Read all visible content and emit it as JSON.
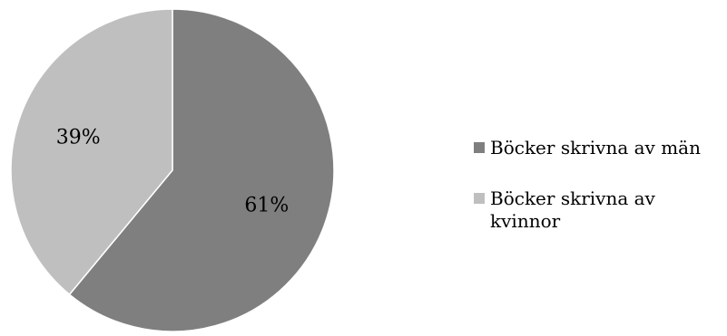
{
  "chart_data": {
    "type": "pie",
    "title": "",
    "slices": [
      {
        "label": "Böcker skrivna av män",
        "value": 61,
        "display": "61%",
        "color": "#7f7f7f"
      },
      {
        "label": "Böcker skrivna av kvinnor",
        "value": 39,
        "display": "39%",
        "color": "#bfbfbf"
      }
    ],
    "legend": {
      "position": "right",
      "entries": [
        {
          "label_lines": [
            "Böcker skrivna av män"
          ],
          "color": "#7f7f7f"
        },
        {
          "label_lines": [
            "Böcker skrivna av",
            "kvinnor"
          ],
          "color": "#bfbfbf"
        }
      ]
    }
  }
}
